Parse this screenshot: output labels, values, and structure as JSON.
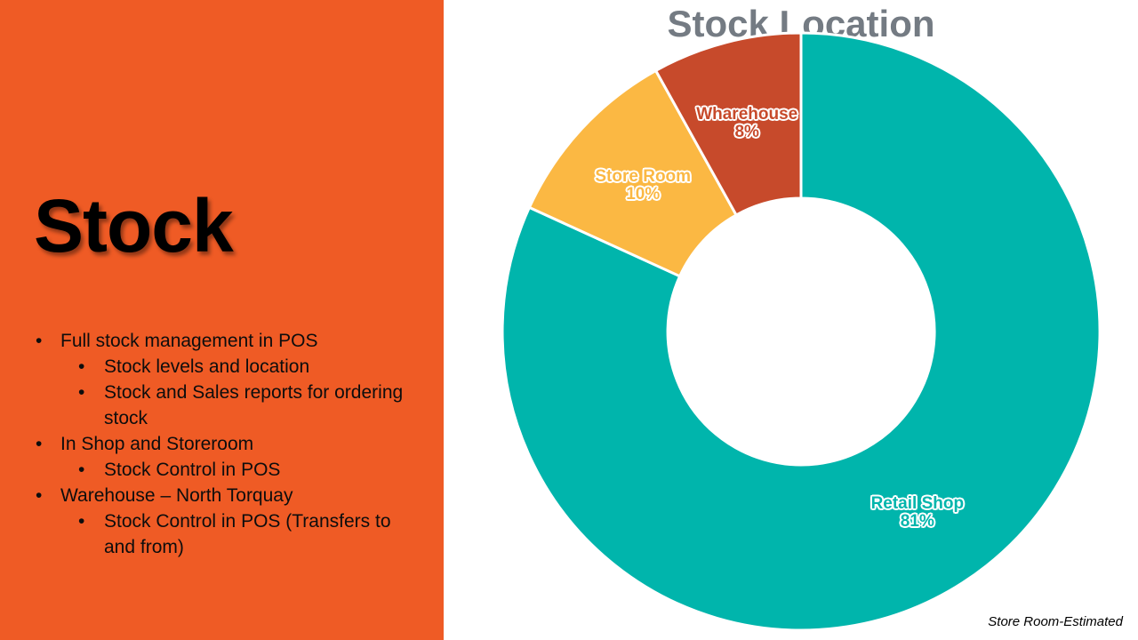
{
  "slide": {
    "title": "Stock",
    "panel_color": "#EF5B25",
    "bullets": [
      {
        "level": 1,
        "text": "Full stock management in POS"
      },
      {
        "level": 2,
        "text": "Stock levels and location"
      },
      {
        "level": 2,
        "text": "Stock and Sales reports for ordering stock"
      },
      {
        "level": 1,
        "text": "In Shop and Storeroom"
      },
      {
        "level": 2,
        "text": "Stock Control in POS"
      },
      {
        "level": 1,
        "text": "Warehouse – North Torquay"
      },
      {
        "level": 2,
        "text": "Stock Control in POS (Transfers to and from)"
      }
    ],
    "footnote": "Store Room-Estimated"
  },
  "chart_data": {
    "type": "pie",
    "subtype": "donut",
    "title": "Stock Location",
    "categories": [
      "Retail Shop",
      "Store Room",
      "Wharehouse"
    ],
    "values": [
      81,
      10,
      8
    ],
    "unit": "%",
    "series_colors": [
      "#00B5AC",
      "#FBB843",
      "#C74A2B"
    ],
    "data_labels": [
      "Retail Shop 81%",
      "Store Room 10%",
      "Wharehouse 8%"
    ],
    "start_angle_deg": 0,
    "direction": "clockwise",
    "inner_radius_ratio": 0.445,
    "legend": "none",
    "note": "Store Room-Estimated"
  }
}
